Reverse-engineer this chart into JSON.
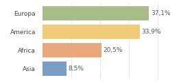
{
  "categories": [
    "Europa",
    "America",
    "Africa",
    "Asia"
  ],
  "values": [
    37.1,
    33.9,
    20.5,
    8.5
  ],
  "labels": [
    "37,1%",
    "33,9%",
    "20,5%",
    "8,5%"
  ],
  "bar_colors": [
    "#a8bc8a",
    "#f0cb78",
    "#e8a87c",
    "#7b9ec9"
  ],
  "background_color": "#ffffff",
  "xlim": [
    0,
    44
  ],
  "label_fontsize": 6.5,
  "category_fontsize": 6.5,
  "bar_height": 0.78
}
